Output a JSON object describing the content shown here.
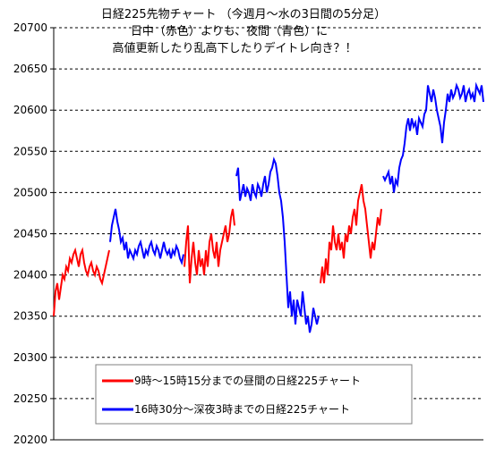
{
  "chart_data": {
    "type": "line",
    "title_lines": [
      "日経225先物チャート （今週月～水の3日間の5分足）",
      "日中（赤色）よりも、夜間（青色）に",
      "高値更新したり乱高下したりデイトレ向き？！"
    ],
    "xlabel": "",
    "ylabel": "",
    "ylim": [
      20200,
      20700
    ],
    "yticks": [
      20200,
      20250,
      20300,
      20350,
      20400,
      20450,
      20500,
      20550,
      20600,
      20650,
      20700
    ],
    "xlim": [
      0,
      480
    ],
    "grid": "horizontal-dashed",
    "legend_position": "bottom-center",
    "legend": [
      {
        "label": "9時～15時15分までの昼間の日経225チャート",
        "color": "#ff0000"
      },
      {
        "label": "16時30分～深夜3時までの日経225チャート",
        "color": "#0000ff"
      }
    ],
    "series": [
      {
        "session": "day-1",
        "color": "#ff0000",
        "x": [
          0,
          2,
          4,
          6,
          8,
          10,
          12,
          14,
          16,
          18,
          20,
          22,
          24,
          26,
          28,
          30,
          32,
          34,
          36,
          38,
          40,
          42,
          44,
          46,
          48,
          50,
          52,
          54,
          56,
          58,
          60,
          62
        ],
        "values": [
          20350,
          20380,
          20390,
          20370,
          20385,
          20400,
          20395,
          20410,
          20405,
          20420,
          20415,
          20425,
          20430,
          20420,
          20410,
          20425,
          20430,
          20415,
          20405,
          20400,
          20410,
          20415,
          20405,
          20400,
          20410,
          20405,
          20395,
          20390,
          20400,
          20410,
          20420,
          20430
        ]
      },
      {
        "session": "night-1",
        "color": "#0000ff",
        "x": [
          63,
          65,
          67,
          69,
          71,
          73,
          75,
          77,
          79,
          81,
          83,
          85,
          87,
          89,
          91,
          93,
          95,
          97,
          99,
          101,
          103,
          105,
          107,
          109,
          111,
          113,
          115,
          117,
          119,
          121,
          123,
          125,
          127,
          129,
          131,
          133,
          135,
          137,
          139,
          141,
          143,
          145
        ],
        "values": [
          20440,
          20460,
          20470,
          20480,
          20465,
          20455,
          20440,
          20445,
          20430,
          20440,
          20420,
          20430,
          20425,
          20420,
          20430,
          20425,
          20435,
          20440,
          20430,
          20420,
          20430,
          20425,
          20435,
          20440,
          20430,
          20425,
          20435,
          20430,
          20420,
          20430,
          20440,
          20430,
          20425,
          20430,
          20420,
          20430,
          20425,
          20435,
          20430,
          20420,
          20415,
          20425
        ]
      },
      {
        "session": "day-2",
        "color": "#ff0000",
        "x": [
          146,
          148,
          150,
          152,
          154,
          156,
          158,
          160,
          162,
          164,
          166,
          168,
          170,
          172,
          174,
          176,
          178,
          180,
          182,
          184,
          186,
          188,
          190,
          192,
          194,
          196,
          198,
          200,
          202
        ],
        "values": [
          20410,
          20440,
          20460,
          20390,
          20420,
          20440,
          20415,
          20400,
          20430,
          20410,
          20420,
          20400,
          20430,
          20410,
          20440,
          20450,
          20430,
          20420,
          20440,
          20410,
          20430,
          20440,
          20450,
          20460,
          20440,
          20450,
          20470,
          20480,
          20460
        ]
      },
      {
        "session": "night-2",
        "color": "#0000ff",
        "x": [
          204,
          206,
          208,
          210,
          212,
          214,
          216,
          218,
          220,
          222,
          224,
          226,
          228,
          230,
          232,
          234,
          236,
          238,
          240,
          242,
          244,
          246,
          248,
          250,
          252,
          254,
          256,
          258,
          260,
          262,
          264,
          266,
          268,
          270,
          272,
          274,
          276,
          278,
          280,
          282,
          284,
          286,
          288,
          290,
          292,
          294,
          296
        ],
        "values": [
          20520,
          20530,
          20490,
          20500,
          20510,
          20495,
          20505,
          20500,
          20490,
          20510,
          20500,
          20495,
          20510,
          20505,
          20495,
          20510,
          20520,
          20500,
          20510,
          20525,
          20530,
          20540,
          20535,
          20520,
          20500,
          20490,
          20470,
          20440,
          20400,
          20360,
          20380,
          20350,
          20370,
          20340,
          20370,
          20360,
          20350,
          20380,
          20360,
          20340,
          20350,
          20330,
          20340,
          20360,
          20350,
          20340,
          20350
        ]
      },
      {
        "session": "day-3",
        "color": "#ff0000",
        "x": [
          298,
          300,
          302,
          304,
          306,
          308,
          310,
          312,
          314,
          316,
          318,
          320,
          322,
          324,
          326,
          328,
          330,
          332,
          334,
          336,
          338,
          340,
          342,
          344,
          346,
          348,
          350,
          352,
          354,
          356,
          358,
          360,
          362,
          364,
          366
        ],
        "values": [
          20390,
          20410,
          20390,
          20420,
          20400,
          20440,
          20430,
          20460,
          20440,
          20430,
          20450,
          20430,
          20440,
          20420,
          20450,
          20440,
          20460,
          20450,
          20470,
          20480,
          20460,
          20490,
          20500,
          20510,
          20490,
          20480,
          20460,
          20440,
          20420,
          20440,
          20430,
          20450,
          20470,
          20460,
          20480
        ]
      },
      {
        "session": "night-3",
        "color": "#0000ff",
        "x": [
          368,
          370,
          372,
          374,
          376,
          378,
          380,
          382,
          384,
          386,
          388,
          390,
          392,
          394,
          396,
          398,
          400,
          402,
          404,
          406,
          408,
          410,
          412,
          414,
          416,
          418,
          420,
          422,
          424,
          426,
          428,
          430,
          432,
          434,
          436,
          438,
          440,
          442,
          444,
          446,
          448,
          450,
          452,
          454,
          456,
          458,
          460,
          462,
          464,
          466,
          468,
          470,
          472,
          474,
          476,
          478,
          480
        ],
        "values": [
          20520,
          20515,
          20520,
          20525,
          20510,
          20520,
          20500,
          20515,
          20510,
          20530,
          20540,
          20545,
          20560,
          20580,
          20590,
          20575,
          20590,
          20580,
          20585,
          20570,
          20590,
          20585,
          20580,
          20595,
          20600,
          20630,
          20620,
          20610,
          20625,
          20615,
          20600,
          20590,
          20580,
          20560,
          20585,
          20600,
          20620,
          20610,
          20625,
          20615,
          20620,
          20630,
          20625,
          20615,
          20620,
          20630,
          20610,
          20620,
          20625,
          20615,
          20620,
          20610,
          20630,
          20625,
          20620,
          20630,
          20610
        ]
      }
    ]
  }
}
